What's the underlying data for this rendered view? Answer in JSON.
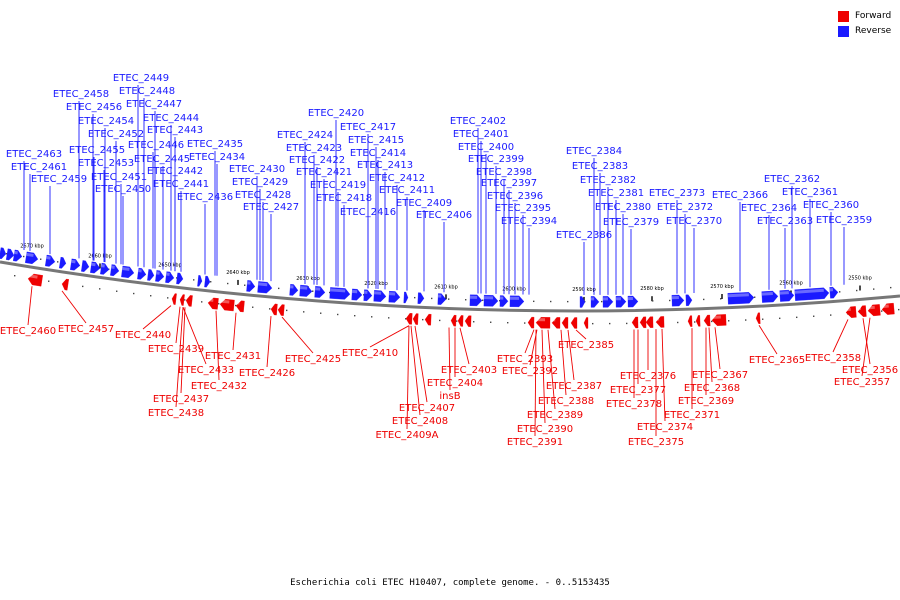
{
  "legend": {
    "forward": {
      "label": "Forward",
      "color": "#ee0000"
    },
    "reverse": {
      "label": "Reverse",
      "color": "#1a1aff"
    }
  },
  "caption": "Escherichia coli ETEC H10407, complete genome. - 0..5153435",
  "scale_ticks": [
    "2670 kbp",
    "2660 kbp",
    "2650 kbp",
    "2640 kbp",
    "2630 kbp",
    "2620 kbp",
    "2610 kbp",
    "2600 kbp",
    "2590 kbp",
    "2580 kbp",
    "2570 kbp",
    "2560 kbp",
    "2550 kbp"
  ],
  "reverse_genes": [
    "ETEC_2449",
    "ETEC_2448",
    "ETEC_2458",
    "ETEC_2447",
    "ETEC_2456",
    "ETEC_2444",
    "ETEC_2454",
    "ETEC_2443",
    "ETEC_2452",
    "ETEC_2435",
    "ETEC_2446",
    "ETEC_2455",
    "ETEC_2445",
    "ETEC_2434",
    "ETEC_2463",
    "ETEC_2453",
    "ETEC_2430",
    "ETEC_2461",
    "ETEC_2442",
    "ETEC_2451",
    "ETEC_2429",
    "ETEC_2459",
    "ETEC_2441",
    "ETEC_2450",
    "ETEC_2428",
    "ETEC_2436",
    "ETEC_2427",
    "ETEC_2420",
    "ETEC_2417",
    "ETEC_2424",
    "ETEC_2415",
    "ETEC_2423",
    "ETEC_2414",
    "ETEC_2422",
    "ETEC_2413",
    "ETEC_2421",
    "ETEC_2412",
    "ETEC_2419",
    "ETEC_2411",
    "ETEC_2418",
    "ETEC_2409",
    "ETEC_2416",
    "ETEC_2406",
    "ETEC_2402",
    "ETEC_2401",
    "ETEC_2400",
    "ETEC_2399",
    "ETEC_2398",
    "ETEC_2397",
    "ETEC_2396",
    "ETEC_2395",
    "ETEC_2394",
    "ETEC_2384",
    "ETEC_2383",
    "ETEC_2382",
    "ETEC_2381",
    "ETEC_2380",
    "ETEC_2379",
    "ETEC_2386",
    "ETEC_2373",
    "ETEC_2372",
    "ETEC_2370",
    "ETEC_2366",
    "ETEC_2364",
    "ETEC_2363",
    "ETEC_2362",
    "ETEC_2361",
    "ETEC_2360",
    "ETEC_2359"
  ],
  "forward_genes": [
    "ETEC_2460",
    "ETEC_2457",
    "ETEC_2440",
    "ETEC_2439",
    "ETEC_2431",
    "ETEC_2433",
    "ETEC_2432",
    "ETEC_2437",
    "ETEC_2438",
    "ETEC_2426",
    "ETEC_2425",
    "ETEC_2410",
    "ETEC_2403",
    "ETEC_2404",
    "insB",
    "ETEC_2407",
    "ETEC_2408",
    "ETEC_2409A",
    "ETEC_2393",
    "ETEC_2392",
    "ETEC_2385",
    "ETEC_2387",
    "ETEC_2388",
    "ETEC_2389",
    "ETEC_2390",
    "ETEC_2391",
    "ETEC_2376",
    "ETEC_2377",
    "ETEC_2378",
    "ETEC_2374",
    "ETEC_2375",
    "ETEC_2367",
    "ETEC_2368",
    "ETEC_2369",
    "ETEC_2371",
    "ETEC_2365",
    "ETEC_2358",
    "ETEC_2356",
    "ETEC_2357"
  ]
}
